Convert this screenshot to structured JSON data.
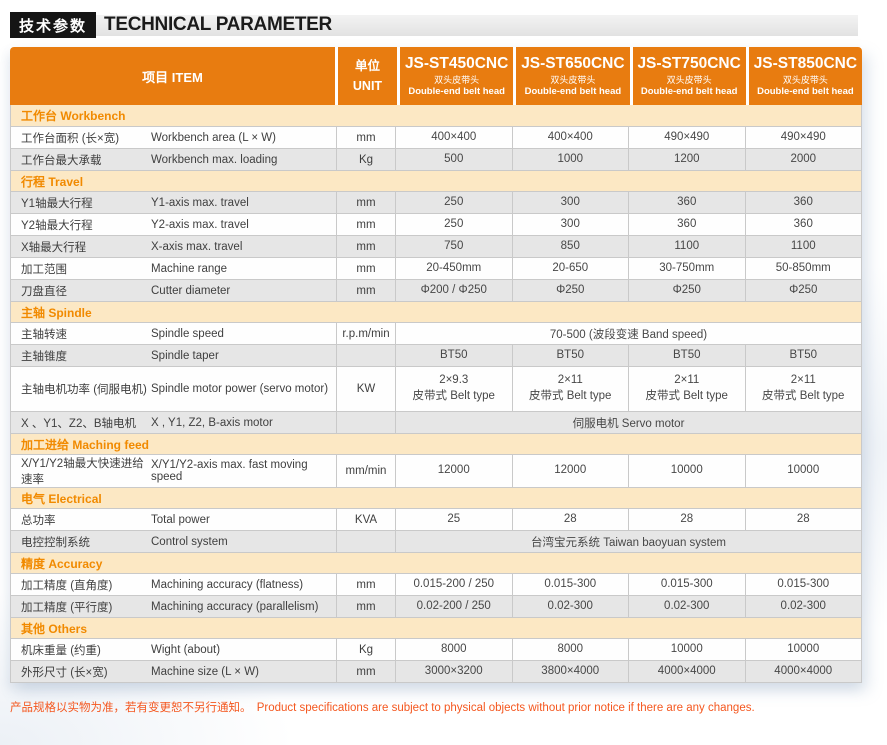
{
  "colors": {
    "header_orange": "#E87C10",
    "section_bg": "#FCE8C4",
    "section_text": "#F18A00",
    "row_gray": "#E6E6E6",
    "footer_text": "#F4571F",
    "title_badge_bg": "#151515"
  },
  "header": {
    "badge_cn": "技术参数",
    "title_en": "TECHNICAL PARAMETER"
  },
  "table": {
    "item_header": "项目 ITEM",
    "unit_header_cn": "单位",
    "unit_header_en": "UNIT",
    "models": [
      {
        "name": "JS-ST450CNC",
        "sub_cn": "双头皮带头",
        "sub_en": "Double-end belt head"
      },
      {
        "name": "JS-ST650CNC",
        "sub_cn": "双头皮带头",
        "sub_en": "Double-end belt head"
      },
      {
        "name": "JS-ST750CNC",
        "sub_cn": "双头皮带头",
        "sub_en": "Double-end belt head"
      },
      {
        "name": "JS-ST850CNC",
        "sub_cn": "双头皮带头",
        "sub_en": "Double-end belt head"
      }
    ],
    "sections": [
      {
        "title": "工作台 Workbench",
        "rows": [
          {
            "cn": "工作台面积 (长×宽)",
            "en": "Workbench area (L × W)",
            "unit": "mm",
            "shade": "white",
            "values": [
              "400×400",
              "400×400",
              "490×490",
              "490×490"
            ]
          },
          {
            "cn": "工作台最大承载",
            "en": "Workbench max. loading",
            "unit": "Kg",
            "shade": "gray",
            "values": [
              "500",
              "1000",
              "1200",
              "2000"
            ]
          }
        ]
      },
      {
        "title": "行程 Travel",
        "rows": [
          {
            "cn": "Y1轴最大行程",
            "en": "Y1-axis max. travel",
            "unit": "mm",
            "shade": "gray",
            "values": [
              "250",
              "300",
              "360",
              "360"
            ]
          },
          {
            "cn": "Y2轴最大行程",
            "en": "Y2-axis max. travel",
            "unit": "mm",
            "shade": "white",
            "values": [
              "250",
              "300",
              "360",
              "360"
            ]
          },
          {
            "cn": "X轴最大行程",
            "en": "X-axis max. travel",
            "unit": "mm",
            "shade": "gray",
            "values": [
              "750",
              "850",
              "1100",
              "1100"
            ]
          },
          {
            "cn": "加工范围",
            "en": "Machine range",
            "unit": "mm",
            "shade": "white",
            "values": [
              "20-450mm",
              "20-650",
              "30-750mm",
              "50-850mm"
            ]
          },
          {
            "cn": "刀盘直径",
            "en": "Cutter diameter",
            "unit": "mm",
            "shade": "gray",
            "values": [
              "Φ200 / Φ250",
              "Φ250",
              "Φ250",
              "Φ250"
            ]
          }
        ]
      },
      {
        "title": "主轴 Spindle",
        "rows": [
          {
            "cn": "主轴转速",
            "en": "Spindle speed",
            "unit": "r.p.m/min",
            "shade": "white",
            "span": "70-500 (波段变速 Band speed)"
          },
          {
            "cn": "主轴锥度",
            "en": "Spindle taper",
            "unit": "",
            "shade": "gray",
            "values": [
              "BT50",
              "BT50",
              "BT50",
              "BT50"
            ]
          },
          {
            "cn": "主轴电机功率 (伺服电机)",
            "en": "Spindle motor power (servo motor)",
            "unit": "KW",
            "shade": "white",
            "tall": true,
            "values": [
              "2×9.3\n皮带式 Belt type",
              "2×11\n皮带式 Belt type",
              "2×11\n皮带式 Belt type",
              "2×11\n皮带式 Belt type"
            ]
          },
          {
            "cn": "X 、Y1、Z2、B轴电机",
            "en": "X , Y1, Z2, B-axis motor",
            "unit": "",
            "shade": "gray",
            "span": "伺服电机 Servo motor"
          }
        ]
      },
      {
        "title": "加工进给 Maching feed",
        "rows": [
          {
            "cn": "X/Y1/Y2轴最大快速进给速率",
            "en": "X/Y1/Y2-axis max. fast moving speed",
            "unit": "mm/min",
            "shade": "white",
            "values": [
              "12000",
              "12000",
              "10000",
              "10000"
            ]
          }
        ]
      },
      {
        "title": "电气 Electrical",
        "rows": [
          {
            "cn": "总功率",
            "en": "Total power",
            "unit": "KVA",
            "shade": "white",
            "values": [
              "25",
              "28",
              "28",
              "28"
            ]
          },
          {
            "cn": "电控控制系统",
            "en": "Control system",
            "unit": "",
            "shade": "gray",
            "span": "台湾宝元系统  Taiwan baoyuan system"
          }
        ]
      },
      {
        "title": "精度 Accuracy",
        "rows": [
          {
            "cn": "加工精度 (直角度)",
            "en": "Machining accuracy (flatness)",
            "unit": "mm",
            "shade": "white",
            "values": [
              "0.015-200 / 250",
              "0.015-300",
              "0.015-300",
              "0.015-300"
            ]
          },
          {
            "cn": "加工精度 (平行度)",
            "en": "Machining accuracy (parallelism)",
            "unit": "mm",
            "shade": "gray",
            "values": [
              "0.02-200 / 250",
              "0.02-300",
              "0.02-300",
              "0.02-300"
            ]
          }
        ]
      },
      {
        "title": "其他 Others",
        "rows": [
          {
            "cn": "机床重量 (约重)",
            "en": "Wight (about)",
            "unit": "Kg",
            "shade": "white",
            "values": [
              "8000",
              "8000",
              "10000",
              "10000"
            ]
          },
          {
            "cn": "外形尺寸 (长×宽)",
            "en": "Machine size  (L × W)",
            "unit": "mm",
            "shade": "gray",
            "values": [
              "3000×3200",
              "3800×4000",
              "4000×4000",
              "4000×4000"
            ]
          }
        ]
      }
    ]
  },
  "footer": {
    "note_cn": "产品规格以实物为准，若有变更恕不另行通知。",
    "note_en": "Product specifications are subject to physical objects without prior notice if there are any changes."
  }
}
